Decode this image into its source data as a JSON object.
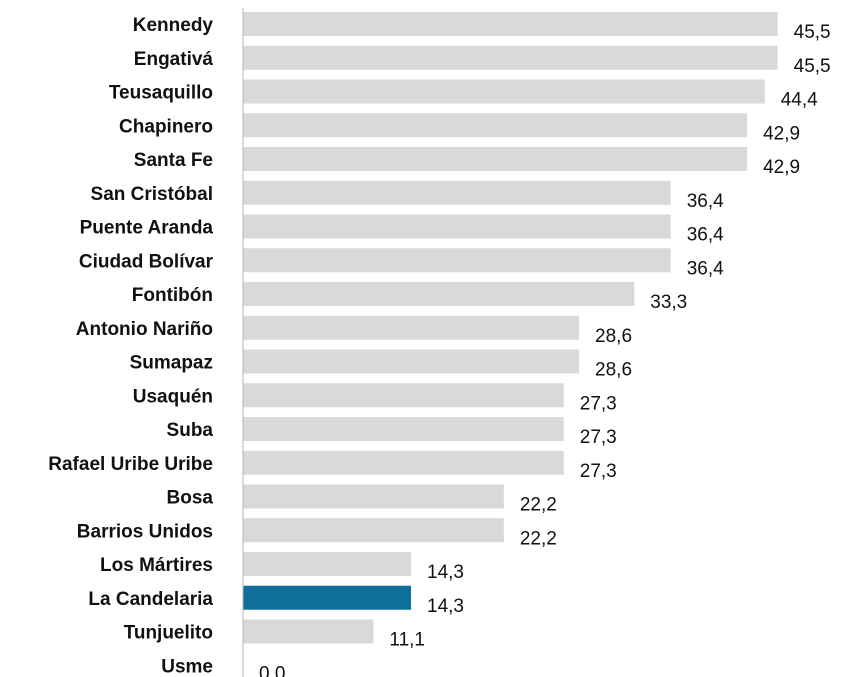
{
  "chart_data": {
    "type": "bar",
    "orientation": "horizontal",
    "title": "",
    "xlabel": "",
    "ylabel": "",
    "xlim": [
      0,
      50
    ],
    "grid": false,
    "legend": "none",
    "decimal_separator": ",",
    "categories": [
      "Kennedy",
      "Engativá",
      "Teusaquillo",
      "Chapinero",
      "Santa Fe",
      "San Cristóbal",
      "Puente Aranda",
      "Ciudad Bolívar",
      "Fontibón",
      "Antonio Nariño",
      "Sumapaz",
      "Usaquén",
      "Suba",
      "Rafael Uribe Uribe",
      "Bosa",
      "Barrios Unidos",
      "Los Mártires",
      "La Candelaria",
      "Tunjuelito",
      "Usme"
    ],
    "values": [
      45.5,
      45.5,
      44.4,
      42.9,
      42.9,
      36.4,
      36.4,
      36.4,
      33.3,
      28.6,
      28.6,
      27.3,
      27.3,
      27.3,
      22.2,
      22.2,
      14.3,
      14.3,
      11.1,
      0.0
    ],
    "value_labels": [
      "45,5",
      "45,5",
      "44,4",
      "42,9",
      "42,9",
      "36,4",
      "36,4",
      "36,4",
      "33,3",
      "28,6",
      "28,6",
      "27,3",
      "27,3",
      "27,3",
      "22,2",
      "22,2",
      "14,3",
      "14,3",
      "11,1",
      "0,0"
    ],
    "highlight_category": "La Candelaria",
    "colors": {
      "bar": "#d9d9d9",
      "highlight": "#0e6f98",
      "axis": "#b5b5b5",
      "text": "#111111"
    }
  }
}
